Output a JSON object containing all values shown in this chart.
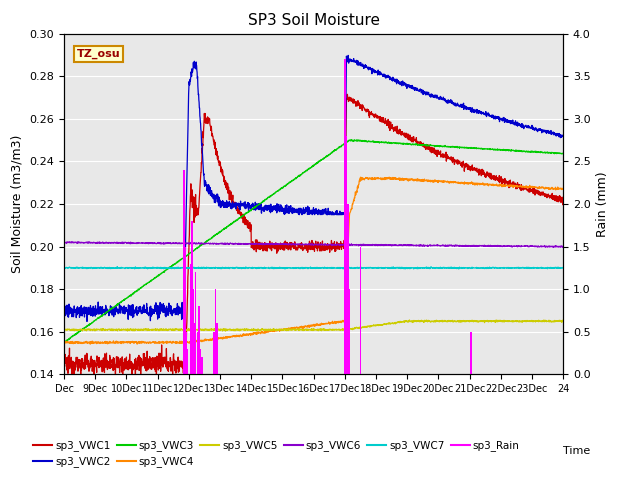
{
  "title": "SP3 Soil Moisture",
  "ylabel_left": "Soil Moisture (m3/m3)",
  "ylabel_right": "Rain (mm)",
  "xlabel": "Time",
  "ylim_left": [
    0.14,
    0.3
  ],
  "ylim_right": [
    0.0,
    4.0
  ],
  "background_color": "#e8e8e8",
  "tz_label": "TZ_osu",
  "x_tick_labels": [
    "Dec",
    "9Dec",
    "10Dec",
    "11Dec",
    "12Dec",
    "13Dec",
    "14Dec",
    "15Dec",
    "16Dec",
    "17Dec",
    "18Dec",
    "19Dec",
    "20Dec",
    "21Dec",
    "22Dec",
    "23Dec",
    "24"
  ],
  "legend_colors_vwc1": "#cc0000",
  "legend_colors_vwc2": "#0000cc",
  "legend_colors_vwc3": "#00cc00",
  "legend_colors_vwc4": "#ff8800",
  "legend_colors_vwc5": "#cccc00",
  "legend_colors_vwc6": "#8800cc",
  "legend_colors_vwc7": "#00cccc",
  "legend_colors_rain": "#ff00ff",
  "title_fontsize": 11
}
